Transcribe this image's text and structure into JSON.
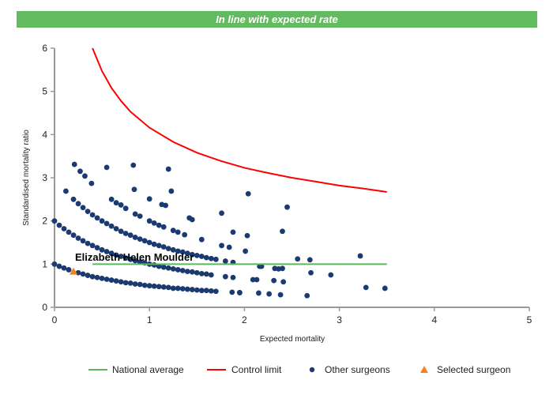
{
  "banner": {
    "text": "In line with expected rate",
    "color": "#62bb5e"
  },
  "chart_data": {
    "type": "scatter",
    "title": "In line with expected rate",
    "xlabel": "Expected mortality",
    "ylabel": "Standardised mortality ratio",
    "xlim": [
      0,
      5
    ],
    "ylim": [
      0,
      6
    ],
    "xticks": [
      "0",
      "1",
      "2",
      "3",
      "4",
      "5"
    ],
    "yticks": [
      "0",
      "1",
      "2",
      "3",
      "4",
      "5",
      "6"
    ],
    "grid": false,
    "legend_position": "bottom",
    "annotation": "Elizabeth Helen Moulder",
    "series": [
      {
        "name": "National average",
        "type": "line",
        "color": "#5cb85c",
        "points": [
          [
            0.4,
            1
          ],
          [
            3.5,
            1
          ]
        ]
      },
      {
        "name": "Control limit",
        "type": "line",
        "color": "#ff0000",
        "points": [
          [
            0.4,
            6.0
          ],
          [
            0.5,
            5.47
          ],
          [
            0.6,
            5.08
          ],
          [
            0.7,
            4.78
          ],
          [
            0.8,
            4.53
          ],
          [
            1,
            4.16
          ],
          [
            1.25,
            3.83
          ],
          [
            1.5,
            3.58
          ],
          [
            1.75,
            3.39
          ],
          [
            2,
            3.23
          ],
          [
            2.25,
            3.11
          ],
          [
            2.5,
            3.0
          ],
          [
            2.75,
            2.91
          ],
          [
            3,
            2.82
          ],
          [
            3.25,
            2.75
          ],
          [
            3.5,
            2.67
          ]
        ]
      },
      {
        "name": "Other surgeons",
        "type": "scatter",
        "color": "#1a3a70",
        "points": [
          [
            0,
            1.0
          ],
          [
            0.05,
            0.95
          ],
          [
            0.1,
            0.91
          ],
          [
            0.15,
            0.87
          ],
          [
            0.25,
            0.8
          ],
          [
            0.3,
            0.77
          ],
          [
            0.35,
            0.74
          ],
          [
            0.4,
            0.71
          ],
          [
            0.45,
            0.69
          ],
          [
            0.5,
            0.67
          ],
          [
            0.55,
            0.65
          ],
          [
            0.6,
            0.63
          ],
          [
            0.65,
            0.61
          ],
          [
            0.7,
            0.59
          ],
          [
            0.75,
            0.57
          ],
          [
            0.8,
            0.56
          ],
          [
            0.85,
            0.54
          ],
          [
            0.9,
            0.53
          ],
          [
            0.95,
            0.51
          ],
          [
            1,
            0.5
          ],
          [
            1.05,
            0.49
          ],
          [
            1.1,
            0.48
          ],
          [
            1.15,
            0.47
          ],
          [
            1.2,
            0.46
          ],
          [
            1.25,
            0.44
          ],
          [
            1.3,
            0.44
          ],
          [
            1.35,
            0.43
          ],
          [
            1.4,
            0.42
          ],
          [
            1.45,
            0.41
          ],
          [
            1.5,
            0.4
          ],
          [
            1.55,
            0.39
          ],
          [
            1.6,
            0.39
          ],
          [
            1.65,
            0.38
          ],
          [
            1.7,
            0.37
          ],
          [
            1.87,
            0.35
          ],
          [
            1.95,
            0.34
          ],
          [
            0,
            2.0
          ],
          [
            0.05,
            1.9
          ],
          [
            0.1,
            1.82
          ],
          [
            0.15,
            1.74
          ],
          [
            0.2,
            1.67
          ],
          [
            0.25,
            1.6
          ],
          [
            0.3,
            1.54
          ],
          [
            0.35,
            1.48
          ],
          [
            0.4,
            1.43
          ],
          [
            0.45,
            1.38
          ],
          [
            0.5,
            1.33
          ],
          [
            0.55,
            1.29
          ],
          [
            0.6,
            1.25
          ],
          [
            0.65,
            1.21
          ],
          [
            0.7,
            1.18
          ],
          [
            0.75,
            1.14
          ],
          [
            0.8,
            1.11
          ],
          [
            0.85,
            1.08
          ],
          [
            0.9,
            1.05
          ],
          [
            0.95,
            1.03
          ],
          [
            1,
            1.0
          ],
          [
            1.05,
            0.98
          ],
          [
            1.1,
            0.95
          ],
          [
            1.15,
            0.93
          ],
          [
            1.2,
            0.91
          ],
          [
            1.25,
            0.89
          ],
          [
            1.3,
            0.87
          ],
          [
            1.35,
            0.85
          ],
          [
            1.4,
            0.83
          ],
          [
            1.45,
            0.82
          ],
          [
            1.5,
            0.8
          ],
          [
            1.55,
            0.78
          ],
          [
            1.6,
            0.77
          ],
          [
            1.65,
            0.75
          ],
          [
            1.8,
            0.71
          ],
          [
            1.88,
            0.69
          ],
          [
            0.2,
            2.5
          ],
          [
            0.25,
            2.4
          ],
          [
            0.3,
            2.31
          ],
          [
            0.35,
            2.22
          ],
          [
            0.4,
            2.14
          ],
          [
            0.45,
            2.07
          ],
          [
            0.5,
            2.0
          ],
          [
            0.55,
            1.94
          ],
          [
            0.6,
            1.88
          ],
          [
            0.65,
            1.82
          ],
          [
            0.7,
            1.76
          ],
          [
            0.75,
            1.71
          ],
          [
            0.8,
            1.67
          ],
          [
            0.85,
            1.62
          ],
          [
            0.9,
            1.58
          ],
          [
            0.95,
            1.54
          ],
          [
            1,
            1.5
          ],
          [
            1.05,
            1.46
          ],
          [
            1.1,
            1.43
          ],
          [
            1.15,
            1.4
          ],
          [
            1.2,
            1.36
          ],
          [
            1.25,
            1.33
          ],
          [
            1.3,
            1.3
          ],
          [
            1.35,
            1.28
          ],
          [
            1.4,
            1.25
          ],
          [
            1.45,
            1.22
          ],
          [
            1.5,
            1.2
          ],
          [
            1.55,
            1.18
          ],
          [
            1.6,
            1.15
          ],
          [
            1.65,
            1.13
          ],
          [
            1.7,
            1.11
          ],
          [
            1.8,
            1.07
          ],
          [
            1.88,
            1.04
          ],
          [
            0.6,
            2.5
          ],
          [
            0.65,
            2.42
          ],
          [
            0.7,
            2.37
          ],
          [
            0.75,
            2.29
          ],
          [
            0.85,
            2.16
          ],
          [
            0.9,
            2.11
          ],
          [
            1.0,
            2.0
          ],
          [
            1.05,
            1.95
          ],
          [
            1.1,
            1.9
          ],
          [
            1.15,
            1.86
          ],
          [
            1.25,
            1.78
          ],
          [
            1.3,
            1.74
          ],
          [
            0.12,
            2.69
          ],
          [
            0.21,
            3.31
          ],
          [
            0.27,
            3.15
          ],
          [
            0.32,
            3.04
          ],
          [
            0.39,
            2.87
          ],
          [
            0.55,
            3.24
          ],
          [
            0.83,
            3.29
          ],
          [
            1.2,
            3.2
          ],
          [
            0.84,
            2.73
          ],
          [
            1.23,
            2.69
          ],
          [
            1.0,
            2.51
          ],
          [
            1.17,
            2.36
          ],
          [
            1.13,
            2.38
          ],
          [
            1.42,
            2.07
          ],
          [
            1.45,
            2.03
          ],
          [
            1.76,
            2.18
          ],
          [
            2.04,
            2.63
          ],
          [
            2.45,
            2.32
          ],
          [
            2.4,
            1.76
          ],
          [
            1.88,
            1.74
          ],
          [
            2.03,
            1.66
          ],
          [
            1.37,
            1.68
          ],
          [
            1.55,
            1.57
          ],
          [
            1.76,
            1.43
          ],
          [
            1.84,
            1.39
          ],
          [
            2.01,
            1.3
          ],
          [
            2.56,
            1.12
          ],
          [
            2.69,
            1.1
          ],
          [
            3.22,
            1.19
          ],
          [
            2.91,
            0.75
          ],
          [
            2.7,
            0.8
          ],
          [
            3.28,
            0.46
          ],
          [
            3.48,
            0.44
          ],
          [
            2.4,
            0.9
          ],
          [
            2.32,
            0.9
          ],
          [
            2.36,
            0.89
          ],
          [
            2.41,
            0.59
          ],
          [
            2.31,
            0.62
          ],
          [
            2.09,
            0.64
          ],
          [
            2.13,
            0.64
          ],
          [
            2.15,
            0.33
          ],
          [
            2.26,
            0.31
          ],
          [
            2.38,
            0.29
          ],
          [
            2.66,
            0.27
          ],
          [
            2.18,
            0.95
          ],
          [
            2.16,
            0.95
          ],
          [
            1.95,
            0.34
          ]
        ]
      },
      {
        "name": "Selected surgeon",
        "type": "scatter",
        "marker": "triangle",
        "color": "#f5821f",
        "points": [
          [
            0.2,
            0.83
          ]
        ]
      }
    ]
  }
}
